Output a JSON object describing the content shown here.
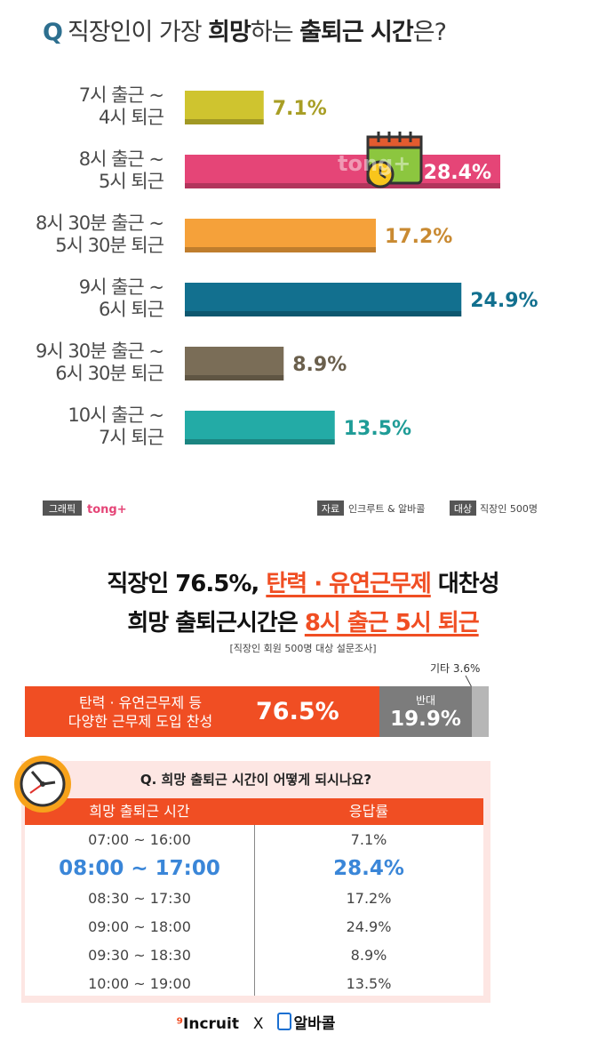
{
  "question": {
    "q_mark": "Q",
    "text_before": "직장인이 가장",
    "text_bold1": "희망",
    "text_mid": "하는",
    "text_bold2": "출퇴근 시간",
    "text_after": "은?"
  },
  "chart_data": {
    "type": "bar",
    "orientation": "horizontal",
    "categories": [
      [
        "7시 출근 ~",
        "4시 퇴근"
      ],
      [
        "8시 출근 ~",
        "5시 퇴근"
      ],
      [
        "8시 30분 출근 ~",
        "5시 30분 퇴근"
      ],
      [
        "9시 출근 ~",
        "6시 퇴근"
      ],
      [
        "9시 30분 출근 ~",
        "6시 30분 퇴근"
      ],
      [
        "10시 출근 ~",
        "7시 퇴근"
      ]
    ],
    "values": [
      7.1,
      28.4,
      17.2,
      24.9,
      8.9,
      13.5
    ],
    "value_labels": [
      "7.1%",
      "28.4%",
      "17.2%",
      "24.9%",
      "8.9%",
      "13.5%"
    ],
    "colors": [
      "#cfc42f",
      "#e54577",
      "#f5a13a",
      "#12708f",
      "#7a6d57",
      "#23aba6"
    ],
    "label_colors": [
      "#a89e25",
      "#ffffff",
      "#c98a32",
      "#12708f",
      "#6a5f4c",
      "#1f9c97"
    ],
    "highlight_index": 1,
    "title": "직장인이 가장 희망하는 출퇴근 시간은?",
    "xlabel": "",
    "ylabel": "",
    "xlim": [
      0,
      30
    ],
    "grid": false,
    "watermark": "tong+"
  },
  "credits": {
    "graphic_tag": "그래픽",
    "graphic_brand": "tong+",
    "source_tag": "자료",
    "source_text": "인크루트 & 알바콜",
    "target_tag": "대상",
    "target_text": "직장인 500명"
  },
  "headline": {
    "line1_pre": "직장인 76.5%,",
    "line1_hl": "탄력 · 유연근무제",
    "line1_post": "대찬성",
    "line2_pre": "희망 출퇴근시간은",
    "line2_hl": "8시 출근 5시 퇴근",
    "subnote": "[직장인 회원 500명 대상 설문조사]"
  },
  "approval": {
    "segments": [
      {
        "label_line1": "탄력 · 유연근무제 등",
        "label_line2": "다양한 근무제 도입 찬성",
        "value": 76.5,
        "value_label": "76.5%",
        "color": "#f04e23"
      },
      {
        "label_line1": "반대",
        "value": 19.9,
        "value_label": "19.9%",
        "color": "#7c7c7c"
      },
      {
        "label_line1": "기타",
        "value": 3.6,
        "value_label": "3.6%",
        "color": "#b6b6b6"
      }
    ],
    "other_label": "기타 3.6%"
  },
  "table": {
    "question": "Q. 희망 출퇴근 시간이 어떻게 되시나요?",
    "headers": [
      "희망 출퇴근 시간",
      "응답률"
    ],
    "rows": [
      [
        "07:00 ~ 16:00",
        "7.1%"
      ],
      [
        "08:00 ~ 17:00",
        "28.4%"
      ],
      [
        "08:30 ~ 17:30",
        "17.2%"
      ],
      [
        "09:00 ~ 18:00",
        "24.9%"
      ],
      [
        "09:30 ~ 18:30",
        "8.9%"
      ],
      [
        "10:00 ~ 19:00",
        "13.5%"
      ]
    ],
    "highlight_row": 1
  },
  "logos": {
    "incruit": "Incruit",
    "x": "X",
    "albacall": "알바콜"
  }
}
